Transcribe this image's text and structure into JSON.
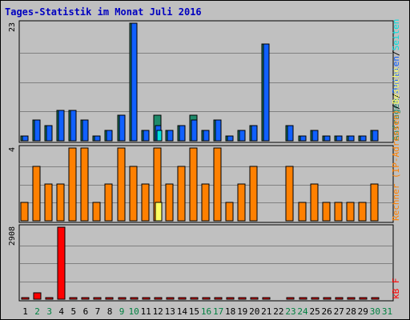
{
  "title": "Tages-Statistik im Monat Juli 2016",
  "colors": {
    "background": "#c0c0c0",
    "title": "#0000c0",
    "anfragen": "#1e8a6a",
    "dateien": "#1060ff",
    "seiten": "#00e0e0",
    "rechner": "#ff8000",
    "besuche": "#ffff60",
    "kbf": "#ff0000",
    "weekend_label": "#008040",
    "weekday_label": "#000000"
  },
  "chart_data": [
    {
      "type": "bar",
      "name": "requests-panel",
      "ymax_label": "23",
      "ylim": [
        0,
        23
      ],
      "right_label_parts": [
        {
          "text": "Anfragen",
          "color": "#1e8a6a"
        },
        {
          "text": "/",
          "color": "#000000"
        },
        {
          "text": "Dateien",
          "color": "#1060ff"
        },
        {
          "text": "/",
          "color": "#000000"
        },
        {
          "text": "Seiten",
          "color": "#00e0e0"
        }
      ],
      "series": [
        {
          "name": "Anfragen",
          "values": [
            1,
            4,
            3,
            6,
            6,
            4,
            1,
            2,
            5,
            23,
            2,
            5,
            2,
            3,
            5,
            2,
            4,
            1,
            2,
            3,
            19,
            0,
            3,
            1,
            2,
            1,
            1,
            1,
            1,
            2,
            0
          ]
        },
        {
          "name": "Dateien",
          "values": [
            1,
            4,
            3,
            6,
            6,
            4,
            1,
            2,
            5,
            23,
            2,
            3,
            2,
            3,
            4,
            2,
            4,
            1,
            2,
            3,
            19,
            0,
            3,
            1,
            2,
            1,
            1,
            1,
            1,
            2,
            0
          ]
        },
        {
          "name": "Seiten",
          "values": [
            0,
            0,
            0,
            0,
            0,
            0,
            0,
            0,
            0,
            0,
            0,
            2,
            0,
            0,
            0,
            0,
            0,
            0,
            0,
            0,
            0,
            0,
            0,
            0,
            0,
            0,
            0,
            0,
            0,
            0,
            0
          ]
        }
      ]
    },
    {
      "type": "bar",
      "name": "visits-panel",
      "ymax_label": "4",
      "ylim": [
        0,
        4
      ],
      "right_label_parts": [
        {
          "text": "Rechner (IP-Adressen)",
          "color": "#ff8000"
        },
        {
          "text": "/",
          "color": "#000000"
        },
        {
          "text": "Besuche",
          "color": "#ffff60"
        }
      ],
      "series": [
        {
          "name": "Rechner (IP-Adressen)",
          "values": [
            1,
            3,
            2,
            2,
            4,
            4,
            1,
            2,
            4,
            3,
            2,
            4,
            2,
            3,
            4,
            2,
            4,
            1,
            2,
            3,
            0,
            0,
            3,
            1,
            2,
            1,
            1,
            1,
            1,
            2,
            0
          ]
        },
        {
          "name": "Besuche",
          "values": [
            0,
            0,
            0,
            0,
            0,
            0,
            0,
            0,
            0,
            0,
            0,
            1,
            0,
            0,
            0,
            0,
            0,
            0,
            0,
            0,
            0,
            0,
            0,
            0,
            0,
            0,
            0,
            0,
            0,
            0,
            0
          ]
        }
      ]
    },
    {
      "type": "bar",
      "name": "kb-panel",
      "ymax_label": "2908",
      "ylim": [
        0,
        2908
      ],
      "right_label_parts": [
        {
          "text": "kB F",
          "color": "#ff0000"
        }
      ],
      "series": [
        {
          "name": "kB F",
          "values": [
            30,
            260,
            30,
            2908,
            30,
            30,
            30,
            30,
            30,
            30,
            30,
            30,
            30,
            30,
            30,
            30,
            30,
            30,
            30,
            30,
            30,
            0,
            30,
            30,
            30,
            30,
            30,
            30,
            30,
            30,
            0
          ]
        }
      ]
    }
  ],
  "x_labels": [
    {
      "text": "1",
      "weekend": false
    },
    {
      "text": "2",
      "weekend": true
    },
    {
      "text": "3",
      "weekend": true
    },
    {
      "text": "4",
      "weekend": false
    },
    {
      "text": "5",
      "weekend": false
    },
    {
      "text": "6",
      "weekend": false
    },
    {
      "text": "7",
      "weekend": false
    },
    {
      "text": "8",
      "weekend": false
    },
    {
      "text": "9",
      "weekend": true
    },
    {
      "text": "10",
      "weekend": true
    },
    {
      "text": "11",
      "weekend": false
    },
    {
      "text": "12",
      "weekend": false
    },
    {
      "text": "13",
      "weekend": false
    },
    {
      "text": "14",
      "weekend": false
    },
    {
      "text": "15",
      "weekend": false
    },
    {
      "text": "16",
      "weekend": true
    },
    {
      "text": "17",
      "weekend": true
    },
    {
      "text": "18",
      "weekend": false
    },
    {
      "text": "19",
      "weekend": false
    },
    {
      "text": "20",
      "weekend": false
    },
    {
      "text": "21",
      "weekend": false
    },
    {
      "text": "22",
      "weekend": false
    },
    {
      "text": "23",
      "weekend": true
    },
    {
      "text": "24",
      "weekend": true
    },
    {
      "text": "25",
      "weekend": false
    },
    {
      "text": "26",
      "weekend": false
    },
    {
      "text": "27",
      "weekend": false
    },
    {
      "text": "28",
      "weekend": false
    },
    {
      "text": "29",
      "weekend": false
    },
    {
      "text": "30",
      "weekend": true
    },
    {
      "text": "31",
      "weekend": true
    }
  ]
}
